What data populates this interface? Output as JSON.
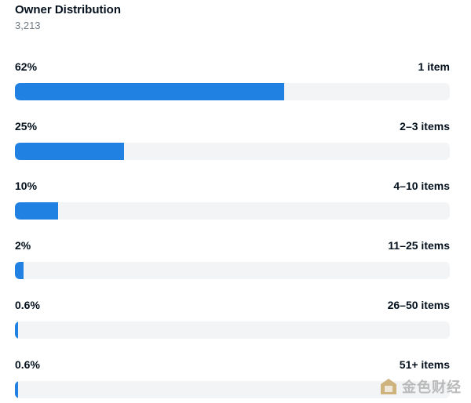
{
  "header": {
    "title": "Owner Distribution",
    "subtitle": "3,213"
  },
  "chart_data": {
    "type": "bar",
    "orientation": "horizontal",
    "title": "Owner Distribution",
    "subtitle": "3,213",
    "xlim": [
      0,
      100
    ],
    "categories": [
      "1 item",
      "2–3 items",
      "4–10 items",
      "11–25 items",
      "26–50 items",
      "51+ items"
    ],
    "value_labels": [
      "62%",
      "25%",
      "10%",
      "2%",
      "0.6%",
      "0.6%"
    ],
    "values": [
      62,
      25,
      10,
      2,
      0.6,
      0.6
    ],
    "colors": {
      "bar": "#2081e2",
      "track": "#f3f4f6"
    }
  },
  "watermark": {
    "text": "金色财经",
    "icon": "jinse-logo-icon"
  }
}
